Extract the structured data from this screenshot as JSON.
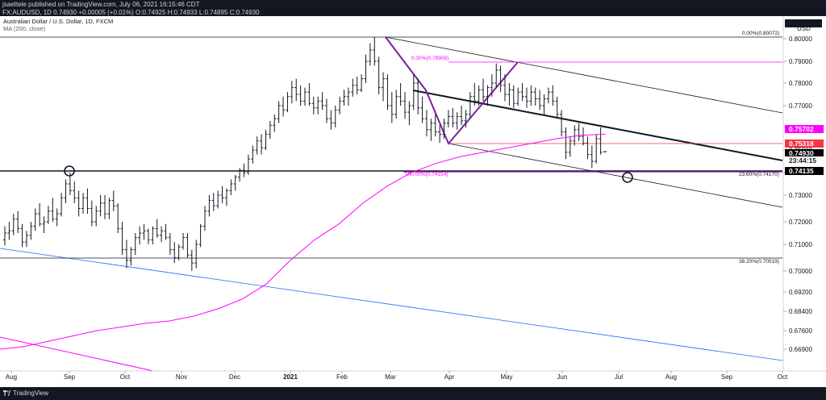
{
  "header": {
    "publish_line": "jsaettele published on TradingView.com, July 06, 2021 16:15:46 CDT",
    "symbol": "FX:AUDUSD",
    "timeframe": "1D",
    "last": "0.74930",
    "change": "+0.00005 (+0.01%)",
    "o_label": "O:",
    "o": "0.74925",
    "h_label": "H:",
    "h": "0.74933",
    "l_label": "L:",
    "l": "0.74895",
    "c_label": "C:",
    "c": "0.74930"
  },
  "legend": {
    "title": "Australian Dollar / U.S. Dollar, 1D, FXCM",
    "ma": "MA (200, close)"
  },
  "footer": {
    "brand": "TradingView"
  },
  "colors": {
    "candle": "#131722",
    "ma": "#ff00ff",
    "fib": "#131722",
    "fib_pink": "#ff00ff",
    "trend_blue": "#2962ff",
    "price_tag": "#000000",
    "ma_tag": "#ff00ff",
    "red_tag": "#f23645",
    "level_tag": "#000000"
  },
  "chart_data": {
    "type": "candlestick",
    "currency": "USD",
    "y_ticks": [
      "0.80000",
      "0.79000",
      "0.78000",
      "0.77000",
      "0.76000",
      "0.75000",
      "0.74000",
      "0.73000",
      "0.72000",
      "0.71000",
      "0.70000",
      "0.69200",
      "0.68400",
      "0.67600",
      "0.66900"
    ],
    "x_ticks": [
      "Aug",
      "Sep",
      "Oct",
      "Nov",
      "Dec",
      "2021",
      "Feb",
      "Mar",
      "Apr",
      "May",
      "Jun",
      "Jul",
      "Aug",
      "Sep",
      "Oct"
    ],
    "ylim": [
      0.664,
      0.805
    ],
    "price_tags": [
      {
        "label": "0.75702",
        "value": 0.75702,
        "kind": "ma"
      },
      {
        "label": "0.75318",
        "value": 0.75318,
        "kind": "red"
      },
      {
        "label": "0.74930",
        "value": 0.7493,
        "kind": "last"
      },
      {
        "label": "23:44:15",
        "value": 0.7461,
        "kind": "timer"
      },
      {
        "label": "0.74135",
        "value": 0.74135,
        "kind": "level"
      }
    ],
    "fib_labels": [
      {
        "text": "0.00%(0.80072)",
        "value": 0.80072,
        "color": "fib"
      },
      {
        "text": "0.00%(0.78908)",
        "value": 0.78908,
        "color": "fib_pink"
      },
      {
        "text": "100.00%(0.74154)",
        "value": 0.74154,
        "color": "fib_pink"
      },
      {
        "text": "23.60%(0.74170)",
        "value": 0.7417,
        "color": "fib"
      },
      {
        "text": "38.20%(0.70519)",
        "value": 0.70519,
        "color": "fib"
      }
    ],
    "candles": [
      [
        0.712,
        0.718,
        0.7095,
        0.715
      ],
      [
        0.715,
        0.72,
        0.712,
        0.716
      ],
      [
        0.716,
        0.723,
        0.714,
        0.721
      ],
      [
        0.721,
        0.724,
        0.715,
        0.717
      ],
      [
        0.717,
        0.719,
        0.709,
        0.711
      ],
      [
        0.711,
        0.716,
        0.709,
        0.714
      ],
      [
        0.714,
        0.72,
        0.712,
        0.718
      ],
      [
        0.718,
        0.725,
        0.716,
        0.723
      ],
      [
        0.723,
        0.727,
        0.718,
        0.719
      ],
      [
        0.719,
        0.722,
        0.715,
        0.72
      ],
      [
        0.72,
        0.726,
        0.719,
        0.724
      ],
      [
        0.724,
        0.729,
        0.72,
        0.721
      ],
      [
        0.721,
        0.725,
        0.718,
        0.723
      ],
      [
        0.723,
        0.731,
        0.722,
        0.729
      ],
      [
        0.729,
        0.737,
        0.727,
        0.735
      ],
      [
        0.735,
        0.74,
        0.73,
        0.732
      ],
      [
        0.732,
        0.736,
        0.727,
        0.729
      ],
      [
        0.729,
        0.732,
        0.722,
        0.725
      ],
      [
        0.725,
        0.731,
        0.723,
        0.729
      ],
      [
        0.729,
        0.733,
        0.723,
        0.725
      ],
      [
        0.725,
        0.728,
        0.718,
        0.72
      ],
      [
        0.72,
        0.726,
        0.718,
        0.724
      ],
      [
        0.724,
        0.73,
        0.722,
        0.727
      ],
      [
        0.727,
        0.73,
        0.721,
        0.723
      ],
      [
        0.723,
        0.729,
        0.721,
        0.728
      ],
      [
        0.728,
        0.732,
        0.724,
        0.726
      ],
      [
        0.726,
        0.727,
        0.715,
        0.717
      ],
      [
        0.717,
        0.72,
        0.706,
        0.708
      ],
      [
        0.708,
        0.712,
        0.701,
        0.704
      ],
      [
        0.704,
        0.709,
        0.702,
        0.708
      ],
      [
        0.708,
        0.715,
        0.706,
        0.713
      ],
      [
        0.713,
        0.718,
        0.71,
        0.715
      ],
      [
        0.715,
        0.719,
        0.712,
        0.716
      ],
      [
        0.716,
        0.717,
        0.71,
        0.712
      ],
      [
        0.712,
        0.718,
        0.71,
        0.717
      ],
      [
        0.717,
        0.721,
        0.713,
        0.714
      ],
      [
        0.714,
        0.718,
        0.711,
        0.716
      ],
      [
        0.716,
        0.719,
        0.712,
        0.713
      ],
      [
        0.713,
        0.715,
        0.706,
        0.708
      ],
      [
        0.708,
        0.711,
        0.703,
        0.705
      ],
      [
        0.705,
        0.71,
        0.704,
        0.709
      ],
      [
        0.709,
        0.715,
        0.708,
        0.713
      ],
      [
        0.713,
        0.715,
        0.705,
        0.706
      ],
      [
        0.706,
        0.708,
        0.7,
        0.703
      ],
      [
        0.703,
        0.712,
        0.701,
        0.71
      ],
      [
        0.71,
        0.719,
        0.709,
        0.718
      ],
      [
        0.718,
        0.726,
        0.716,
        0.724
      ],
      [
        0.724,
        0.73,
        0.722,
        0.728
      ],
      [
        0.728,
        0.731,
        0.724,
        0.726
      ],
      [
        0.726,
        0.732,
        0.725,
        0.73
      ],
      [
        0.73,
        0.734,
        0.727,
        0.729
      ],
      [
        0.729,
        0.733,
        0.726,
        0.732
      ],
      [
        0.732,
        0.737,
        0.73,
        0.735
      ],
      [
        0.735,
        0.739,
        0.732,
        0.738
      ],
      [
        0.738,
        0.742,
        0.736,
        0.741
      ],
      [
        0.741,
        0.744,
        0.738,
        0.74
      ],
      [
        0.74,
        0.748,
        0.739,
        0.746
      ],
      [
        0.746,
        0.752,
        0.744,
        0.75
      ],
      [
        0.75,
        0.756,
        0.748,
        0.754
      ],
      [
        0.754,
        0.757,
        0.748,
        0.751
      ],
      [
        0.751,
        0.759,
        0.75,
        0.757
      ],
      [
        0.757,
        0.763,
        0.755,
        0.761
      ],
      [
        0.761,
        0.766,
        0.758,
        0.764
      ],
      [
        0.764,
        0.772,
        0.762,
        0.77
      ],
      [
        0.77,
        0.774,
        0.765,
        0.768
      ],
      [
        0.768,
        0.776,
        0.767,
        0.774
      ],
      [
        0.774,
        0.781,
        0.771,
        0.778
      ],
      [
        0.778,
        0.782,
        0.772,
        0.775
      ],
      [
        0.775,
        0.779,
        0.77,
        0.772
      ],
      [
        0.772,
        0.778,
        0.77,
        0.776
      ],
      [
        0.776,
        0.78,
        0.77,
        0.771
      ],
      [
        0.771,
        0.774,
        0.766,
        0.769
      ],
      [
        0.769,
        0.774,
        0.766,
        0.772
      ],
      [
        0.772,
        0.776,
        0.768,
        0.77
      ],
      [
        0.77,
        0.773,
        0.762,
        0.764
      ],
      [
        0.764,
        0.768,
        0.759,
        0.762
      ],
      [
        0.762,
        0.77,
        0.76,
        0.768
      ],
      [
        0.768,
        0.774,
        0.766,
        0.772
      ],
      [
        0.772,
        0.777,
        0.77,
        0.774
      ],
      [
        0.774,
        0.778,
        0.77,
        0.776
      ],
      [
        0.776,
        0.782,
        0.774,
        0.779
      ],
      [
        0.779,
        0.783,
        0.775,
        0.777
      ],
      [
        0.777,
        0.784,
        0.776,
        0.782
      ],
      [
        0.782,
        0.793,
        0.78,
        0.79
      ],
      [
        0.79,
        0.798,
        0.788,
        0.795
      ],
      [
        0.795,
        0.8007,
        0.788,
        0.79
      ],
      [
        0.79,
        0.792,
        0.775,
        0.778
      ],
      [
        0.778,
        0.785,
        0.772,
        0.782
      ],
      [
        0.782,
        0.784,
        0.768,
        0.77
      ],
      [
        0.77,
        0.776,
        0.762,
        0.766
      ],
      [
        0.766,
        0.777,
        0.764,
        0.774
      ],
      [
        0.774,
        0.78,
        0.77,
        0.772
      ],
      [
        0.772,
        0.776,
        0.764,
        0.767
      ],
      [
        0.767,
        0.772,
        0.761,
        0.77
      ],
      [
        0.77,
        0.784,
        0.768,
        0.78
      ],
      [
        0.78,
        0.782,
        0.766,
        0.769
      ],
      [
        0.769,
        0.774,
        0.762,
        0.764
      ],
      [
        0.764,
        0.768,
        0.756,
        0.759
      ],
      [
        0.759,
        0.764,
        0.754,
        0.762
      ],
      [
        0.762,
        0.766,
        0.756,
        0.758
      ],
      [
        0.758,
        0.761,
        0.7532,
        0.757
      ],
      [
        0.757,
        0.764,
        0.755,
        0.762
      ],
      [
        0.762,
        0.768,
        0.76,
        0.765
      ],
      [
        0.765,
        0.769,
        0.76,
        0.762
      ],
      [
        0.762,
        0.767,
        0.759,
        0.765
      ],
      [
        0.765,
        0.77,
        0.761,
        0.763
      ],
      [
        0.763,
        0.768,
        0.76,
        0.766
      ],
      [
        0.766,
        0.776,
        0.764,
        0.774
      ],
      [
        0.774,
        0.78,
        0.77,
        0.772
      ],
      [
        0.772,
        0.779,
        0.77,
        0.777
      ],
      [
        0.777,
        0.782,
        0.772,
        0.774
      ],
      [
        0.774,
        0.779,
        0.77,
        0.778
      ],
      [
        0.778,
        0.784,
        0.774,
        0.78
      ],
      [
        0.78,
        0.789,
        0.778,
        0.786
      ],
      [
        0.786,
        0.788,
        0.776,
        0.779
      ],
      [
        0.779,
        0.784,
        0.772,
        0.775
      ],
      [
        0.775,
        0.78,
        0.77,
        0.777
      ],
      [
        0.777,
        0.779,
        0.769,
        0.771
      ],
      [
        0.771,
        0.778,
        0.77,
        0.776
      ],
      [
        0.776,
        0.78,
        0.772,
        0.774
      ],
      [
        0.774,
        0.778,
        0.769,
        0.772
      ],
      [
        0.772,
        0.779,
        0.77,
        0.776
      ],
      [
        0.776,
        0.778,
        0.77,
        0.773
      ],
      [
        0.773,
        0.777,
        0.768,
        0.77
      ],
      [
        0.77,
        0.775,
        0.766,
        0.773
      ],
      [
        0.773,
        0.778,
        0.771,
        0.776
      ],
      [
        0.776,
        0.779,
        0.77,
        0.772
      ],
      [
        0.772,
        0.774,
        0.764,
        0.766
      ],
      [
        0.766,
        0.768,
        0.756,
        0.758
      ],
      [
        0.758,
        0.76,
        0.746,
        0.749
      ],
      [
        0.749,
        0.756,
        0.747,
        0.754
      ],
      [
        0.754,
        0.761,
        0.752,
        0.759
      ],
      [
        0.759,
        0.762,
        0.754,
        0.756
      ],
      [
        0.756,
        0.76,
        0.752,
        0.753
      ],
      [
        0.753,
        0.756,
        0.746,
        0.748
      ],
      [
        0.748,
        0.752,
        0.742,
        0.745
      ],
      [
        0.745,
        0.757,
        0.744,
        0.755
      ],
      [
        0.755,
        0.76,
        0.748,
        0.749
      ],
      [
        0.74925,
        0.74933,
        0.74895,
        0.7493
      ]
    ],
    "ma_200": [
      0.669,
      0.67,
      0.672,
      0.674,
      0.676,
      0.6775,
      0.679,
      0.68,
      0.682,
      0.685,
      0.689,
      0.695,
      0.704,
      0.712,
      0.719,
      0.727,
      0.734,
      0.74,
      0.744,
      0.747,
      0.749,
      0.751,
      0.753,
      0.755,
      0.7565,
      0.757
    ]
  }
}
